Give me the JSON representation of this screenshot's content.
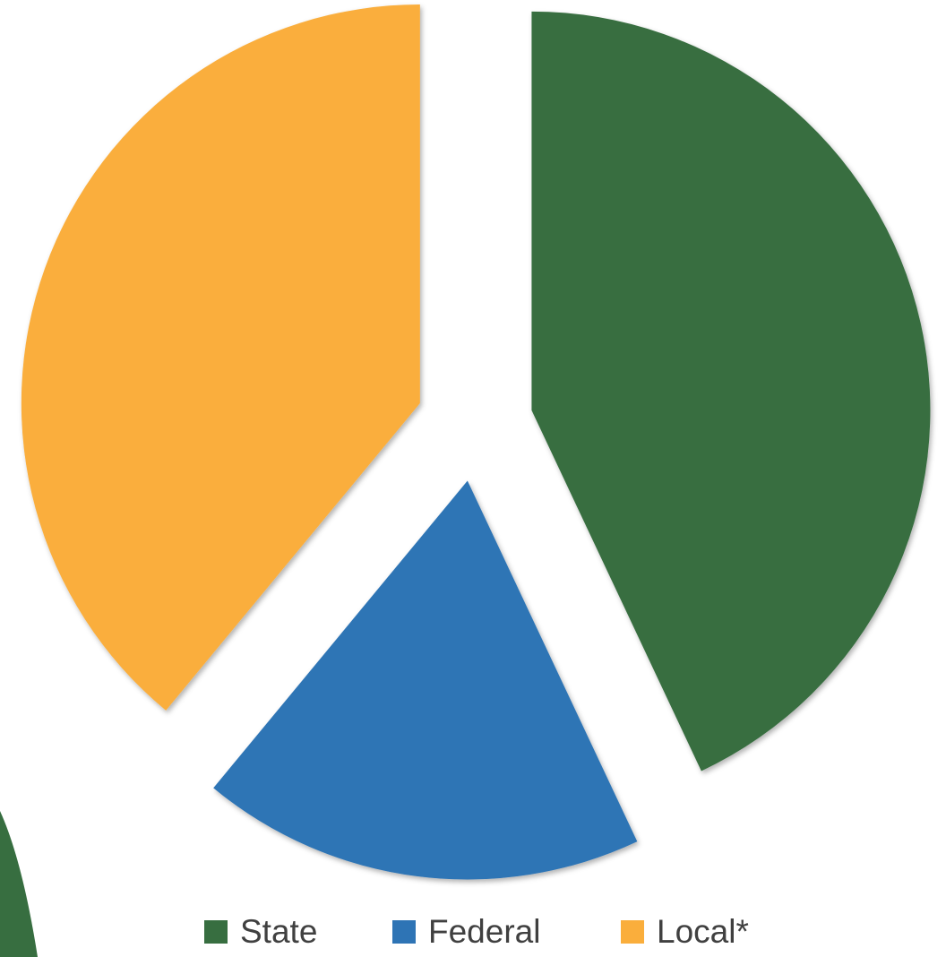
{
  "chart_data": {
    "type": "pie",
    "categories": [
      "State",
      "Federal",
      "Local*"
    ],
    "values": [
      43,
      18,
      39
    ],
    "colors": [
      "#376e40",
      "#2e74b5",
      "#faae3c"
    ],
    "legend": "bottom"
  }
}
